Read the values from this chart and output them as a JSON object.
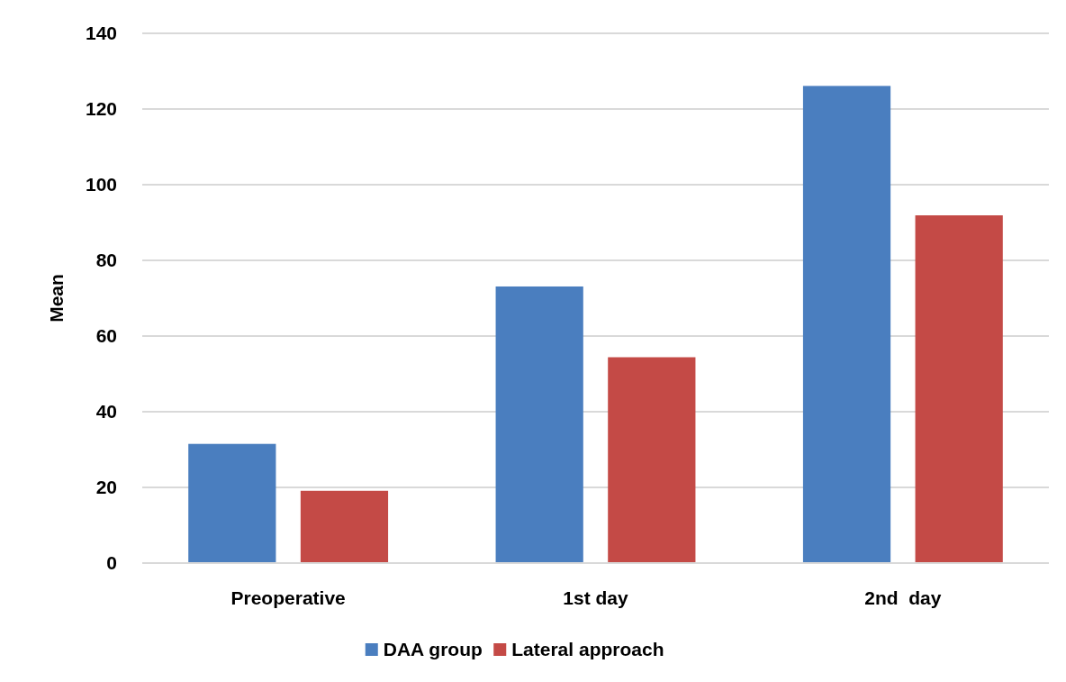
{
  "chart_data": {
    "type": "bar",
    "ylabel": "Mean",
    "categories": [
      "Preoperative",
      "1st day",
      "2nd  day"
    ],
    "series": [
      {
        "name": "DAA group",
        "color": "#4a7ebf",
        "values": [
          31.5,
          73.1,
          126.1
        ]
      },
      {
        "name": "Lateral approach",
        "color": "#c44a46",
        "values": [
          19.1,
          54.4,
          91.9
        ]
      }
    ],
    "ylim": [
      0,
      140
    ],
    "yticks": [
      0,
      20,
      40,
      60,
      80,
      100,
      120,
      140
    ],
    "grid": "y",
    "legend": "bottom"
  }
}
